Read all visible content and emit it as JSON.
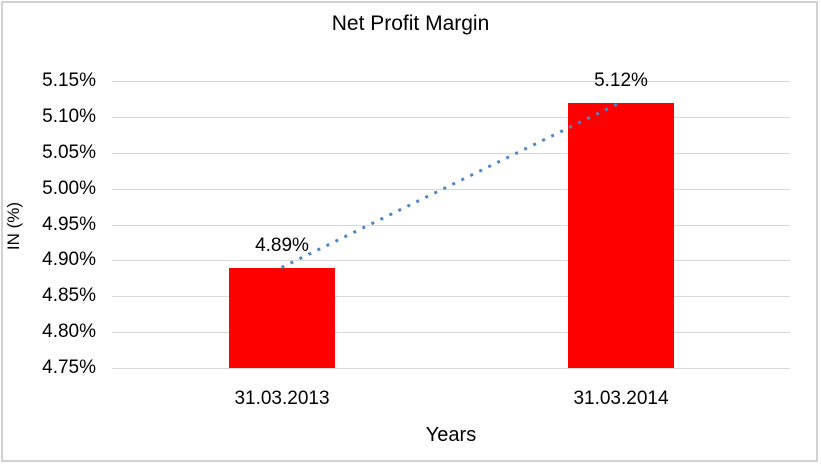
{
  "chart_data": {
    "type": "bar",
    "title": "Net Profit Margin",
    "xlabel": "Years",
    "ylabel": "IN (%)",
    "categories": [
      "31.03.2013",
      "31.03.2014"
    ],
    "values": [
      4.89,
      5.12
    ],
    "data_labels": [
      "4.89%",
      "5.12%"
    ],
    "ylim": [
      4.75,
      5.15
    ],
    "ytick_step": 0.05,
    "ytick_labels": [
      "5.15%",
      "5.10%",
      "5.05%",
      "5.00%",
      "4.95%",
      "4.90%",
      "4.85%",
      "4.80%",
      "4.75%"
    ],
    "grid": true,
    "legend": false,
    "bar_color": "#ff0000",
    "gridline_color": "#d9d9d9",
    "trendline": {
      "style": "dotted",
      "color": "#4e86c8",
      "from_value": 4.89,
      "to_value": 5.12
    }
  }
}
